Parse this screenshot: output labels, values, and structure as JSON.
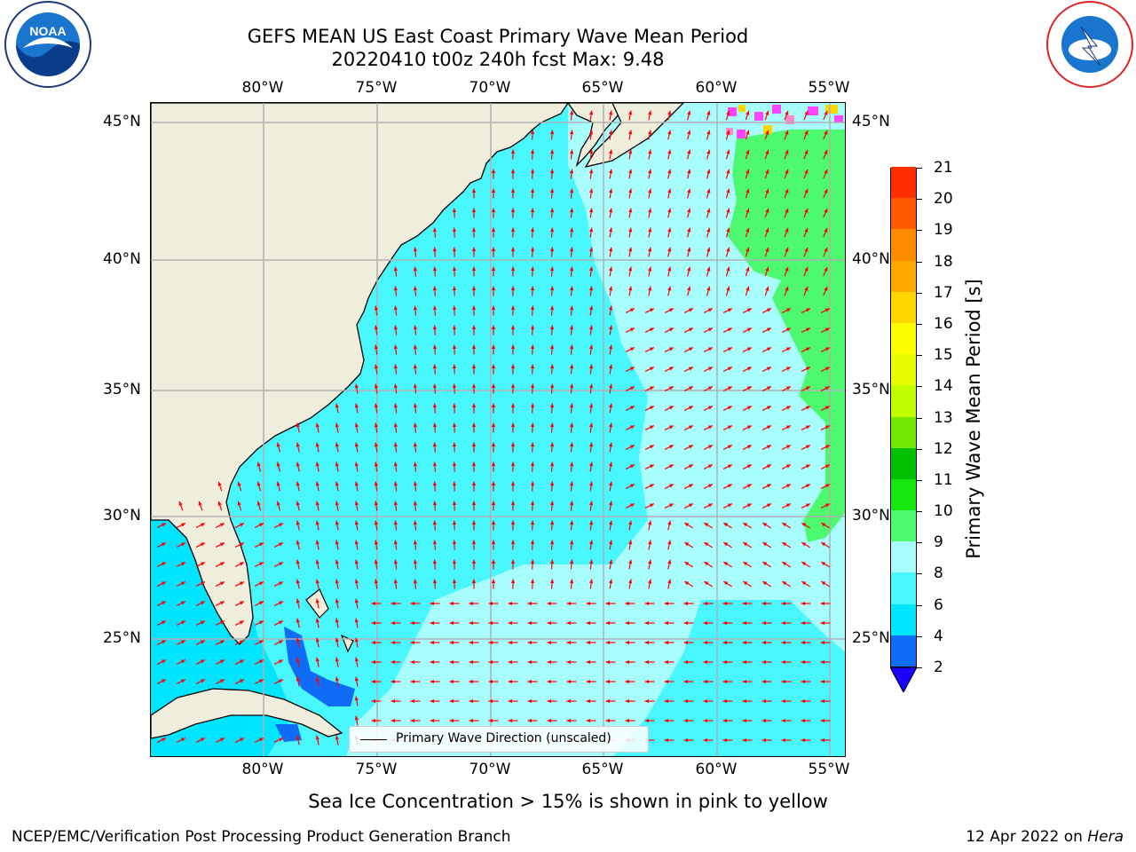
{
  "title_line1": "GEFS MEAN US East Coast Primary Wave Mean Period",
  "title_line2": "20220410 t00z 240h fcst   Max: 9.48",
  "lon_labels": [
    "80°W",
    "75°W",
    "70°W",
    "65°W",
    "60°W",
    "55°W"
  ],
  "lat_labels": [
    "45°N",
    "40°N",
    "35°N",
    "30°N",
    "25°N"
  ],
  "legend_label": "Primary Wave Direction (unscaled)",
  "colorbar": {
    "title": "Primary Wave Mean Period [s]",
    "ticks": [
      "2",
      "4",
      "6",
      "8",
      "9",
      "10",
      "11",
      "12",
      "13",
      "14",
      "15",
      "16",
      "17",
      "18",
      "19",
      "20",
      "21"
    ],
    "colors": [
      "#0f6cf5",
      "#00e5ff",
      "#49f7ff",
      "#a8fdfd",
      "#4dfa6f",
      "#16e80f",
      "#00c000",
      "#74e800",
      "#c0ff00",
      "#e8ff00",
      "#ffff00",
      "#ffd700",
      "#ffa800",
      "#ff8c00",
      "#ff5a00",
      "#ff2d00",
      "#ff0000"
    ],
    "extend_color": "#1a00ff"
  },
  "sea_ice_note": "Sea Ice Concentration > 15% is shown in pink to yellow",
  "footer_left": "NCEP/EMC/Verification Post Processing Product Generation Branch",
  "footer_right_date": "12 Apr 2022 on",
  "footer_right_machine": "Hera",
  "logos": {
    "left": "noaa-logo",
    "right": "national-weather-service-logo"
  },
  "colors": {
    "land": "#efeddb",
    "grid": "#b0b0b0",
    "arrow": "#ff0000",
    "coast": "#000000"
  }
}
